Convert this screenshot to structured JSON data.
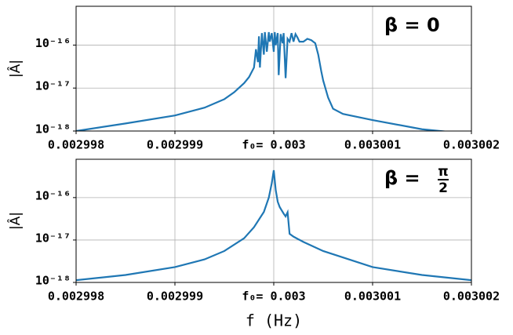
{
  "chart_data": [
    {
      "type": "line",
      "annotation": "β = 0",
      "ylabel": "|Â|",
      "yscale": "log",
      "grid": true,
      "color": "#1f77b4",
      "xlim": [
        0.002998,
        0.003002
      ],
      "ylim": [
        1e-18,
        8e-16
      ],
      "xticks": [
        0.002998,
        0.002999,
        {
          "value": 0.003,
          "label": "f₀= 0.003"
        },
        0.003001,
        0.003002
      ],
      "yticks": [
        {
          "value": 1e-18,
          "label": "10⁻¹⁸"
        },
        {
          "value": 1e-17,
          "label": "10⁻¹⁷"
        },
        {
          "value": 1e-16,
          "label": "10⁻¹⁶"
        }
      ],
      "x": [
        0.002998,
        0.0029985,
        0.002999,
        0.0029993,
        0.0029995,
        0.0029996,
        0.0029997,
        0.00299975,
        0.0029998,
        0.00299982,
        0.00299984,
        0.00299985,
        0.00299986,
        0.00299988,
        0.0029999,
        0.00299991,
        0.00299993,
        0.00299995,
        0.00299996,
        0.00299998,
        0.003,
        0.00300001,
        0.00300002,
        0.00300004,
        0.00300005,
        0.00300007,
        0.00300009,
        0.0030001,
        0.00300012,
        0.00300014,
        0.00300016,
        0.00300018,
        0.0030002,
        0.00300022,
        0.00300024,
        0.00300026,
        0.0030003,
        0.00300034,
        0.00300038,
        0.00300042,
        0.00300045,
        0.00300048,
        0.0030005,
        0.00300055,
        0.0030006,
        0.0030007,
        0.003001,
        0.0030015,
        0.003002
      ],
      "values": [
        1e-18,
        1.5e-18,
        2.3e-18,
        3.5e-18,
        5.5e-18,
        8e-18,
        1.3e-17,
        1.8e-17,
        3e-17,
        8e-17,
        4e-17,
        1.6e-16,
        3e-17,
        1.9e-16,
        6e-17,
        2e-16,
        7e-17,
        2e-16,
        1.2e-16,
        1.9e-16,
        7e-17,
        2e-16,
        1e-16,
        1.9e-16,
        2e-17,
        1.8e-16,
        1.1e-16,
        1.9e-16,
        1.7e-17,
        1.4e-16,
        1.2e-16,
        1.9e-16,
        1.2e-16,
        1.8e-16,
        1.5e-16,
        1.2e-16,
        1.2e-16,
        1.4e-16,
        1.3e-16,
        1.1e-16,
        6e-17,
        2.5e-17,
        1.5e-17,
        6e-18,
        3.3e-18,
        2.5e-18,
        1.8e-18,
        1.1e-18,
        8.5e-19
      ]
    },
    {
      "type": "line",
      "annotation": {
        "text": "β =",
        "numerator": "π",
        "denominator": "2"
      },
      "ylabel": "|Â|",
      "xlabel": "f (Hz)",
      "yscale": "log",
      "grid": true,
      "color": "#1f77b4",
      "xlim": [
        0.002998,
        0.003002
      ],
      "ylim": [
        1e-18,
        8e-16
      ],
      "xticks": [
        0.002998,
        0.002999,
        {
          "value": 0.003,
          "label": "f₀= 0.003"
        },
        0.003001,
        0.003002
      ],
      "yticks": [
        {
          "value": 1e-18,
          "label": "10⁻¹⁸"
        },
        {
          "value": 1e-17,
          "label": "10⁻¹⁷"
        },
        {
          "value": 1e-16,
          "label": "10⁻¹⁶"
        }
      ],
      "x": [
        0.002998,
        0.0029985,
        0.002999,
        0.0029993,
        0.0029995,
        0.0029997,
        0.0029998,
        0.0029999,
        0.00299995,
        0.00299998,
        0.003,
        0.00300002,
        0.00300004,
        0.00300006,
        0.00300008,
        0.0030001,
        0.00300012,
        0.00300014,
        0.00300016,
        0.0030002,
        0.0030003,
        0.0030005,
        0.003001,
        0.0030015,
        0.003002
      ],
      "values": [
        1.13e-18,
        1.5e-18,
        2.3e-18,
        3.5e-18,
        5.5e-18,
        1.1e-17,
        2e-17,
        4.6e-17,
        1e-16,
        2.2e-16,
        4.4e-16,
        1.5e-16,
        8e-17,
        6e-17,
        5e-17,
        4.2e-17,
        3.6e-17,
        4.5e-17,
        1.4e-17,
        1.2e-17,
        9e-18,
        5.5e-18,
        2.3e-18,
        1.5e-18,
        1.13e-18
      ]
    }
  ]
}
